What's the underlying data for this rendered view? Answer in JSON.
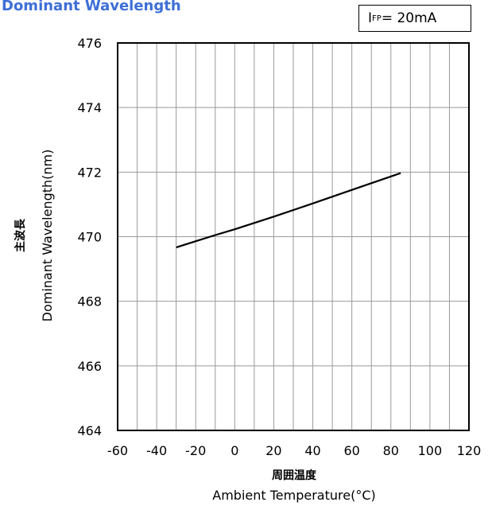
{
  "chart_data": {
    "type": "line",
    "title": "Dominant Wavelength",
    "condition": {
      "prefix": "I",
      "sub": "FP",
      "suffix": "= 20mA"
    },
    "xlabel_ja": "周囲温度",
    "xlabel": "Ambient Temperature(°C)",
    "ylabel_ja": "主波長",
    "ylabel": "Dominant Wavelength(nm)",
    "xlim": [
      -60,
      120
    ],
    "ylim": [
      464,
      476
    ],
    "xticks": [
      -60,
      -40,
      -20,
      0,
      20,
      40,
      60,
      80,
      100,
      120
    ],
    "yticks": [
      464,
      466,
      468,
      470,
      472,
      474,
      476
    ],
    "xgrid_step": 10,
    "ygrid_step": 2,
    "grid": true,
    "series": [
      {
        "x": [
          -30,
          -10,
          0,
          20,
          40,
          60,
          85
        ],
        "y": [
          469.67,
          470.05,
          470.23,
          470.62,
          471.03,
          471.45,
          471.97
        ],
        "color": "#000000"
      }
    ]
  }
}
